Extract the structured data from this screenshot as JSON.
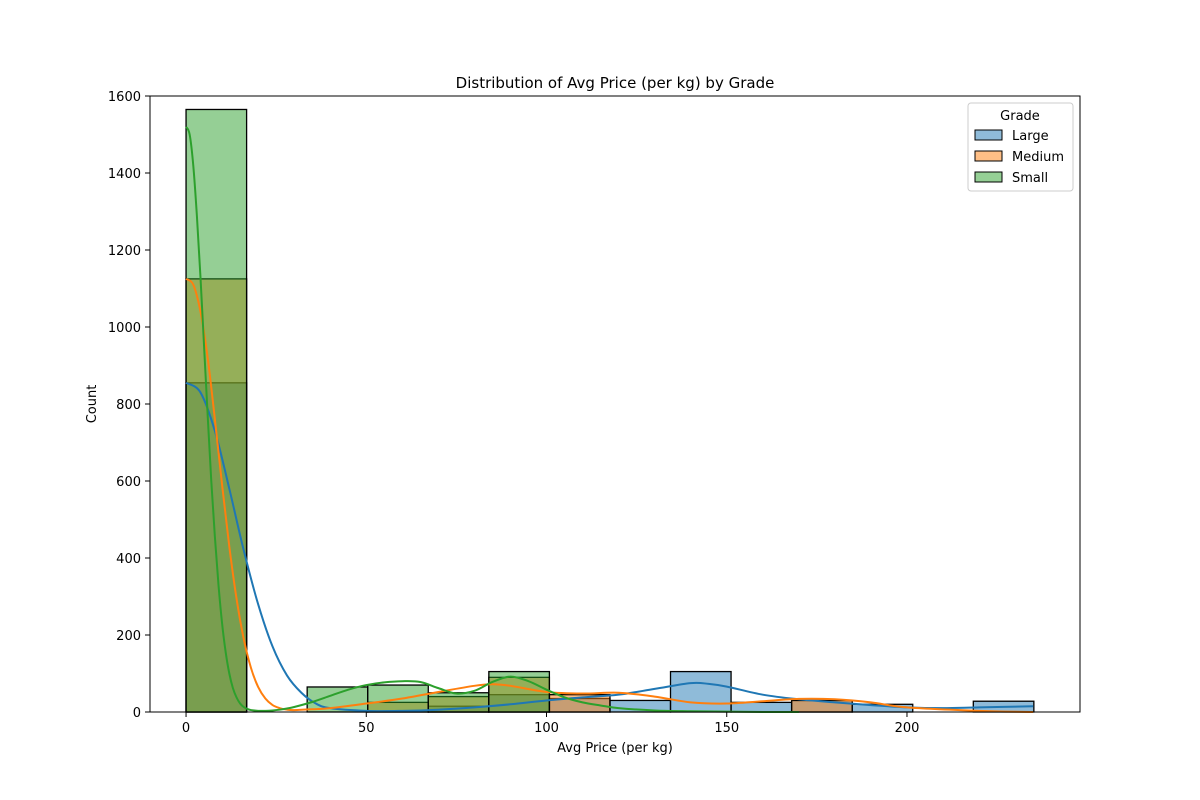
{
  "chart_data": {
    "type": "histogram",
    "title": "Distribution of Avg Price (per kg) by Grade",
    "xlabel": "Avg Price (per kg)",
    "ylabel": "Count",
    "xlim": [
      -10,
      248
    ],
    "ylim": [
      0,
      1600
    ],
    "xticks": [
      0,
      50,
      100,
      150,
      200
    ],
    "yticks": [
      0,
      200,
      400,
      600,
      800,
      1000,
      1200,
      1400,
      1600
    ],
    "bin_edges": [
      0,
      16.8,
      33.6,
      50.4,
      67.2,
      84.0,
      100.8,
      117.6,
      134.4,
      151.2,
      168.0,
      184.8,
      201.6,
      218.4,
      235.2
    ],
    "legend": {
      "title": "Grade",
      "position": "upper right"
    },
    "series": [
      {
        "name": "Large",
        "color": "#1f77b4",
        "counts": [
          855,
          0,
          0,
          0,
          15,
          45,
          35,
          30,
          105,
          25,
          30,
          20,
          0,
          28
        ],
        "kde": {
          "x": [
            0,
            4,
            8,
            12,
            16,
            20,
            24,
            28,
            32,
            36,
            40,
            50,
            60,
            70,
            80,
            90,
            100,
            110,
            120,
            130,
            140,
            145,
            150,
            160,
            170,
            180,
            190,
            200,
            210,
            220,
            235
          ],
          "y": [
            855,
            830,
            730,
            580,
            420,
            280,
            170,
            95,
            50,
            22,
            10,
            3,
            3,
            6,
            12,
            20,
            30,
            38,
            45,
            60,
            75,
            73,
            66,
            45,
            33,
            25,
            18,
            12,
            10,
            12,
            15
          ]
        }
      },
      {
        "name": "Medium",
        "color": "#ff7f0e",
        "counts": [
          1125,
          0,
          0,
          25,
          40,
          90,
          45,
          0,
          0,
          0,
          30,
          0,
          0,
          0
        ],
        "kde": {
          "x": [
            0,
            2,
            4,
            6,
            8,
            10,
            12,
            14,
            16,
            18,
            20,
            22,
            24,
            26,
            28,
            30,
            35,
            40,
            50,
            60,
            70,
            80,
            85,
            90,
            100,
            110,
            120,
            130,
            140,
            150,
            160,
            170,
            180,
            190,
            200,
            220,
            235
          ],
          "y": [
            1125,
            1110,
            1040,
            920,
            760,
            590,
            430,
            295,
            190,
            115,
            65,
            35,
            18,
            10,
            6,
            5,
            7,
            10,
            22,
            35,
            52,
            68,
            72,
            68,
            52,
            48,
            50,
            40,
            25,
            22,
            28,
            34,
            33,
            25,
            12,
            3,
            0
          ]
        }
      },
      {
        "name": "Small",
        "color": "#2ca02c",
        "counts": [
          1565,
          0,
          65,
          70,
          50,
          105,
          0,
          0,
          0,
          0,
          0,
          0,
          0,
          0
        ],
        "kde": {
          "x": [
            0,
            1,
            2,
            3,
            4,
            5,
            6,
            7,
            8,
            9,
            10,
            11,
            12,
            13,
            14,
            15,
            16,
            17,
            18,
            19,
            20,
            22,
            24,
            26,
            28,
            30,
            35,
            40,
            45,
            50,
            55,
            60,
            65,
            70,
            75,
            80,
            85,
            90,
            95,
            100,
            105,
            110,
            115,
            120,
            130,
            140,
            150,
            160,
            170
          ],
          "y": [
            1520,
            1500,
            1420,
            1290,
            1130,
            950,
            770,
            600,
            455,
            330,
            230,
            155,
            100,
            62,
            38,
            22,
            13,
            8,
            5,
            4,
            3,
            3,
            4,
            6,
            9,
            13,
            26,
            42,
            58,
            70,
            77,
            80,
            78,
            62,
            48,
            55,
            78,
            92,
            80,
            58,
            38,
            25,
            17,
            10,
            4,
            2,
            1,
            0,
            0
          ]
        }
      }
    ]
  }
}
